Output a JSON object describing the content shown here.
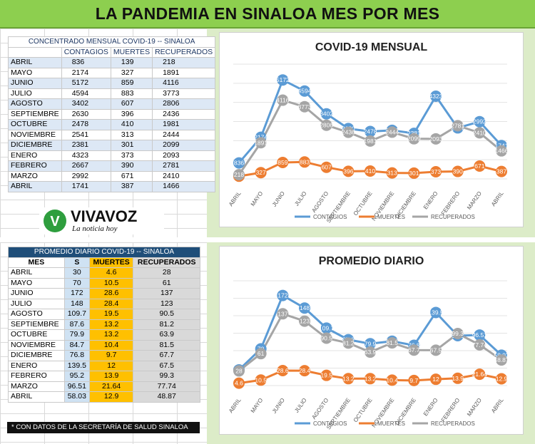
{
  "banner_title": "LA PANDEMIA EN SINALOA MES POR MES",
  "monthly_table": {
    "title": "CONCENTRADO MENSUAL COVID-19 -- SINALOA",
    "headers": [
      "",
      "CONTAGIOS",
      "MUERTES",
      "RECUPERADOS"
    ],
    "rows": [
      [
        "ABRIL",
        "836",
        "139",
        "218"
      ],
      [
        "MAYO",
        "2174",
        "327",
        "1891"
      ],
      [
        "JUNIO",
        "5172",
        "859",
        "4116"
      ],
      [
        "JULIO",
        "4594",
        "883",
        "3773"
      ],
      [
        "AGOSTO",
        "3402",
        "607",
        "2806"
      ],
      [
        "SEPTIEMBRE",
        "2630",
        "396",
        "2436"
      ],
      [
        "OCTUBRE",
        "2478",
        "410",
        "1981"
      ],
      [
        "NOVIEMBRE",
        "2541",
        "313",
        "2444"
      ],
      [
        "DICIEMBRE",
        "2381",
        "301",
        "2099"
      ],
      [
        "ENERO",
        "4323",
        "373",
        "2093"
      ],
      [
        "FEBRERO",
        "2667",
        "390",
        "2781"
      ],
      [
        "MARZO",
        "2992",
        "671",
        "2410"
      ],
      [
        "ABRIL",
        "1741",
        "387",
        "1466"
      ]
    ]
  },
  "daily_table": {
    "title": "PROMEDIO DIARIO COVID-19 -- SINALOA",
    "headers": [
      "MES",
      "S",
      "MUERTES",
      "RECUPERADOS"
    ],
    "rows": [
      [
        "ABRIL",
        "30",
        "4.6",
        "28"
      ],
      [
        "MAYO",
        "70",
        "10.5",
        "61"
      ],
      [
        "JUNIO",
        "172",
        "28.6",
        "137"
      ],
      [
        "JULIO",
        "148",
        "28.4",
        "123"
      ],
      [
        "AGOSTO",
        "109.7",
        "19.5",
        "90.5"
      ],
      [
        "SEPTIEMBRE",
        "87.6",
        "13.2",
        "81.2"
      ],
      [
        "OCTUBRE",
        "79.9",
        "13.2",
        "63.9"
      ],
      [
        "NOVIEMBRE",
        "84.7",
        "10.4",
        "81.5"
      ],
      [
        "DICIEMBRE",
        "76.8",
        "9.7",
        "67.7"
      ],
      [
        "ENERO",
        "139.5",
        "12",
        "67.5"
      ],
      [
        "FEBRERO",
        "95.2",
        "13.9",
        "99.3"
      ],
      [
        "MARZO",
        "96.51",
        "21.64",
        "77.74"
      ],
      [
        "ABRIL",
        "58.03",
        "12.9",
        "48.87"
      ]
    ]
  },
  "logo": {
    "brand": "VIVAVOZ",
    "tagline": "La noticia hoy",
    "mark": "V"
  },
  "footnote": "* CON DATOS DE LA SECRETARÍA DE SALUD SINALOA",
  "colors": {
    "contagios": "#5b9bd5",
    "muertes": "#ed7d31",
    "recuperados": "#a5a5a5",
    "brand_green": "#2e9e3e",
    "header_blue": "#1f4e79"
  },
  "chart_data": [
    {
      "type": "line",
      "title": "COVID-19 MENSUAL",
      "categories": [
        "ABRIL",
        "MAYO",
        "JUNIO",
        "JULIO",
        "AGOSTO",
        "SEPTIEMBRE",
        "OCTUBRE",
        "NOVIEMBRE",
        "DICIEMBRE",
        "ENERO",
        "FEBRERO",
        "MARZO",
        "ABRIL"
      ],
      "ylim": [
        0,
        6000
      ],
      "grid": true,
      "legend": "bottom",
      "series": [
        {
          "name": "CONTAGIOS",
          "color": "#5b9bd5",
          "values": [
            836,
            2174,
            5172,
            4594,
            3402,
            2630,
            2478,
            2541,
            2381,
            4323,
            2667,
            2992,
            1741
          ]
        },
        {
          "name": "MUERTES",
          "color": "#ed7d31",
          "values": [
            139,
            327,
            859,
            883,
            607,
            396,
            410,
            313,
            301,
            373,
            390,
            671,
            387
          ]
        },
        {
          "name": "RECUPERADOS",
          "color": "#a5a5a5",
          "values": [
            218,
            1891,
            4116,
            3773,
            2806,
            2436,
            1981,
            2444,
            2099,
            2093,
            2781,
            2410,
            1466
          ]
        }
      ]
    },
    {
      "type": "line",
      "title": "PROMEDIO DIARIO",
      "categories": [
        "ABRIL",
        "MAYO",
        "JUNIO",
        "JULIO",
        "AGOSTO",
        "SEPTIEMBRE",
        "OCTUBRE",
        "NOVIEMBRE",
        "DICIEMBRE",
        "ENERO",
        "FEBRERO",
        "MARZO",
        "ABRIL"
      ],
      "ylim": [
        0,
        200
      ],
      "grid": true,
      "legend": "bottom",
      "series": [
        {
          "name": "CONTAGIOS",
          "color": "#5b9bd5",
          "values": [
            30,
            70,
            172,
            148,
            109.7,
            87.6,
            79.9,
            84.7,
            76.8,
            139.5,
            95.2,
            96.51,
            58.03
          ]
        },
        {
          "name": "MUERTES",
          "color": "#ed7d31",
          "values": [
            4.6,
            10.5,
            28.6,
            28.4,
            19.5,
            13.2,
            13.2,
            10.4,
            9.7,
            12,
            13.9,
            21.64,
            12.9
          ]
        },
        {
          "name": "RECUPERADOS",
          "color": "#a5a5a5",
          "values": [
            28,
            61,
            137,
            123,
            90.5,
            81.2,
            63.9,
            81.5,
            67.7,
            67.5,
            99.3,
            77.74,
            48.87
          ]
        }
      ]
    }
  ]
}
